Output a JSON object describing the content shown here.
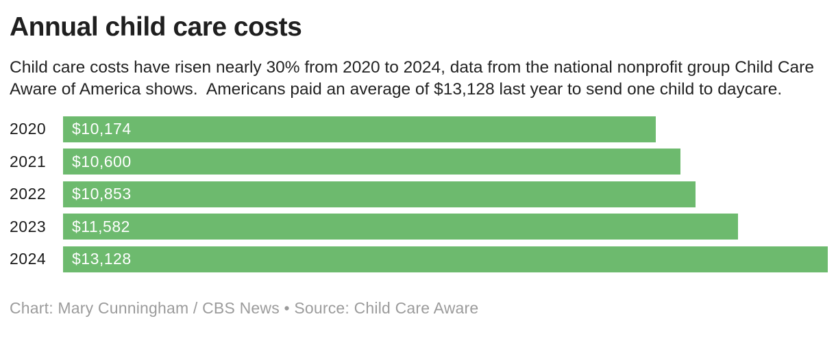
{
  "header": {
    "title": "Annual child care costs",
    "subtitle": "Child care costs have risen nearly 30% from 2020 to 2024, data from the national nonprofit group Child Care Aware of America shows.  Americans paid an average of $13,128 last year to send one child to daycare."
  },
  "chart_data": {
    "type": "bar",
    "orientation": "horizontal",
    "title": "Annual child care costs",
    "categories": [
      "2020",
      "2021",
      "2022",
      "2023",
      "2024"
    ],
    "values": [
      10174,
      10600,
      10853,
      11582,
      13128
    ],
    "value_labels": [
      "$10,174",
      "$10,600",
      "$10,853",
      "$11,582",
      "$13,128"
    ],
    "xlabel": "",
    "ylabel": "",
    "xlim": [
      0,
      13128
    ],
    "grid": false,
    "legend": false,
    "bar_color": "#6dba6e",
    "value_label_color": "#ffffff",
    "category_label_color": "#1a1a1a"
  },
  "footer": {
    "credit": "Chart: Mary Cunningham / CBS News • Source: Child Care Aware"
  }
}
